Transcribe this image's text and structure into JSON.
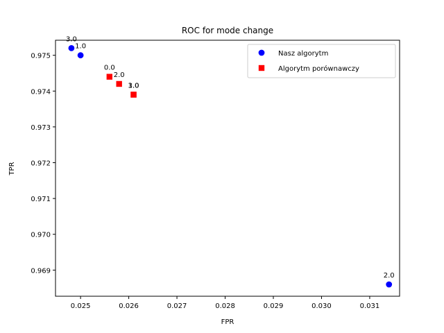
{
  "chart_data": {
    "type": "scatter",
    "title": "ROC for mode change",
    "xlabel": "FPR",
    "ylabel": "TPR",
    "xlim": [
      0.02448,
      0.03162
    ],
    "ylim": [
      0.96827,
      0.97542
    ],
    "xticks": [
      {
        "value": 0.025,
        "label": "0.025"
      },
      {
        "value": 0.026,
        "label": "0.026"
      },
      {
        "value": 0.027,
        "label": "0.027"
      },
      {
        "value": 0.028,
        "label": "0.028"
      },
      {
        "value": 0.029,
        "label": "0.029"
      },
      {
        "value": 0.03,
        "label": "0.030"
      },
      {
        "value": 0.031,
        "label": "0.031"
      }
    ],
    "yticks": [
      {
        "value": 0.969,
        "label": "0.969"
      },
      {
        "value": 0.97,
        "label": "0.970"
      },
      {
        "value": 0.971,
        "label": "0.971"
      },
      {
        "value": 0.972,
        "label": "0.972"
      },
      {
        "value": 0.973,
        "label": "0.973"
      },
      {
        "value": 0.974,
        "label": "0.974"
      },
      {
        "value": 0.975,
        "label": "0.975"
      }
    ],
    "grid": false,
    "legend_position": "top-right",
    "series": [
      {
        "name": "Nasz algorytm",
        "marker": "circle",
        "color": "#0000ff",
        "points": [
          {
            "x": 0.02481,
            "y": 0.9752,
            "label": "3.0"
          },
          {
            "x": 0.025,
            "y": 0.975,
            "label": "1.0"
          },
          {
            "x": 0.0314,
            "y": 0.9686,
            "label": "2.0"
          }
        ]
      },
      {
        "name": "Algorytm porównawczy",
        "marker": "square",
        "color": "#ff0000",
        "points": [
          {
            "x": 0.0256,
            "y": 0.9744,
            "label": "0.0"
          },
          {
            "x": 0.0258,
            "y": 0.9742,
            "label": "2.0"
          },
          {
            "x": 0.0261,
            "y": 0.9739,
            "label": "3.0"
          },
          {
            "x": 0.0261,
            "y": 0.9739,
            "label": "1.0"
          }
        ]
      }
    ]
  }
}
